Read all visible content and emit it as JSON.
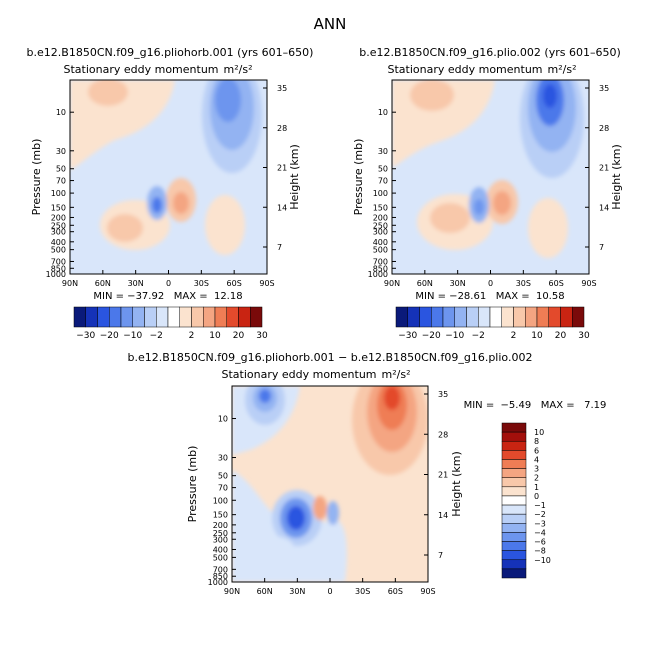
{
  "title": "ANN",
  "colors": {
    "neg": [
      "#0a1a7a",
      "#1532b8",
      "#2a55e0",
      "#4b78ea",
      "#6d95ee",
      "#93b3f2",
      "#b9cff6",
      "#d9e6fa"
    ],
    "pos": [
      "#fbe3cf",
      "#f8c8aa",
      "#f4a582",
      "#ef7d55",
      "#e34a2c",
      "#c92412",
      "#a30f0b",
      "#7a0a0a"
    ]
  },
  "chart_data": [
    {
      "type": "contour",
      "title": "b.e12.B1850CN.f09_g16.pliohorb.001 (yrs 601–650)",
      "subtitle": "Stationary eddy momentum",
      "units": "m²/s²",
      "ylabel": "Pressure (mb)",
      "y2label": "Height (km)",
      "xticks": [
        "90N",
        "60N",
        "30N",
        "0",
        "30S",
        "60S",
        "90S"
      ],
      "pressure_ticks": [
        "10",
        "30",
        "50",
        "70",
        "100",
        "150",
        "200",
        "250",
        "300",
        "400",
        "500",
        "700",
        "850",
        "1000"
      ],
      "height_ticks": [
        "35",
        "28",
        "21",
        "14",
        "7"
      ],
      "stats": "MIN = −37.92   MAX =  12.18",
      "colorbar_labels": [
        "−30",
        "−20",
        "−10",
        "−2",
        "2",
        "10",
        "20",
        "30"
      ],
      "features": [
        {
          "lat": 70,
          "p": 8,
          "value": 6
        },
        {
          "lat": -55,
          "p": 10,
          "value": -20
        },
        {
          "lat": 8,
          "p": 150,
          "value": 12
        },
        {
          "lat": 22,
          "p": 150,
          "value": -30
        },
        {
          "lat": 45,
          "p": 250,
          "value": 6
        }
      ]
    },
    {
      "type": "contour",
      "title": "b.e12.B1850CN.f09_g16.plio.002 (yrs 601–650)",
      "subtitle": "Stationary eddy momentum",
      "units": "m²/s²",
      "ylabel": "Pressure (mb)",
      "y2label": "Height (km)",
      "xticks": [
        "90N",
        "60N",
        "30N",
        "0",
        "30S",
        "60S",
        "90S"
      ],
      "pressure_ticks": [
        "10",
        "30",
        "50",
        "70",
        "100",
        "150",
        "200",
        "250",
        "300",
        "400",
        "500",
        "700",
        "850",
        "1000"
      ],
      "height_ticks": [
        "35",
        "28",
        "21",
        "14",
        "7"
      ],
      "stats": "MIN = −28.61   MAX =  10.58",
      "colorbar_labels": [
        "−30",
        "−20",
        "−10",
        "−2",
        "2",
        "10",
        "20",
        "30"
      ],
      "features": [
        {
          "lat": 65,
          "p": 8,
          "value": 8
        },
        {
          "lat": -55,
          "p": 10,
          "value": -28
        },
        {
          "lat": 5,
          "p": 150,
          "value": 10
        },
        {
          "lat": 20,
          "p": 150,
          "value": -25
        },
        {
          "lat": 45,
          "p": 200,
          "value": 8
        }
      ]
    },
    {
      "type": "contour",
      "title": "b.e12.B1850CN.f09_g16.pliohorb.001 − b.e12.B1850CN.f09_g16.plio.002",
      "subtitle": "Stationary eddy momentum",
      "units": "m²/s²",
      "ylabel": "Pressure (mb)",
      "y2label": "Height (km)",
      "xticks": [
        "90N",
        "60N",
        "30N",
        "0",
        "30S",
        "60S",
        "90S"
      ],
      "pressure_ticks": [
        "10",
        "30",
        "50",
        "70",
        "100",
        "150",
        "200",
        "250",
        "300",
        "400",
        "500",
        "700",
        "850",
        "1000"
      ],
      "height_ticks": [
        "35",
        "28",
        "21",
        "14",
        "7"
      ],
      "stats": "MIN =  −5.49   MAX =   7.19",
      "colorbar_labels": [
        "10",
        "8",
        "6",
        "4",
        "3",
        "2",
        "1",
        "0",
        "−1",
        "−2",
        "−3",
        "−4",
        "−6",
        "−8",
        "−10"
      ],
      "features": [
        {
          "lat": 60,
          "p": 8,
          "value": -3
        },
        {
          "lat": -60,
          "p": 10,
          "value": 6
        },
        {
          "lat": 28,
          "p": 200,
          "value": -5
        },
        {
          "lat": 12,
          "p": 150,
          "value": 2
        },
        {
          "lat": 0,
          "p": 200,
          "value": -2
        }
      ]
    }
  ]
}
